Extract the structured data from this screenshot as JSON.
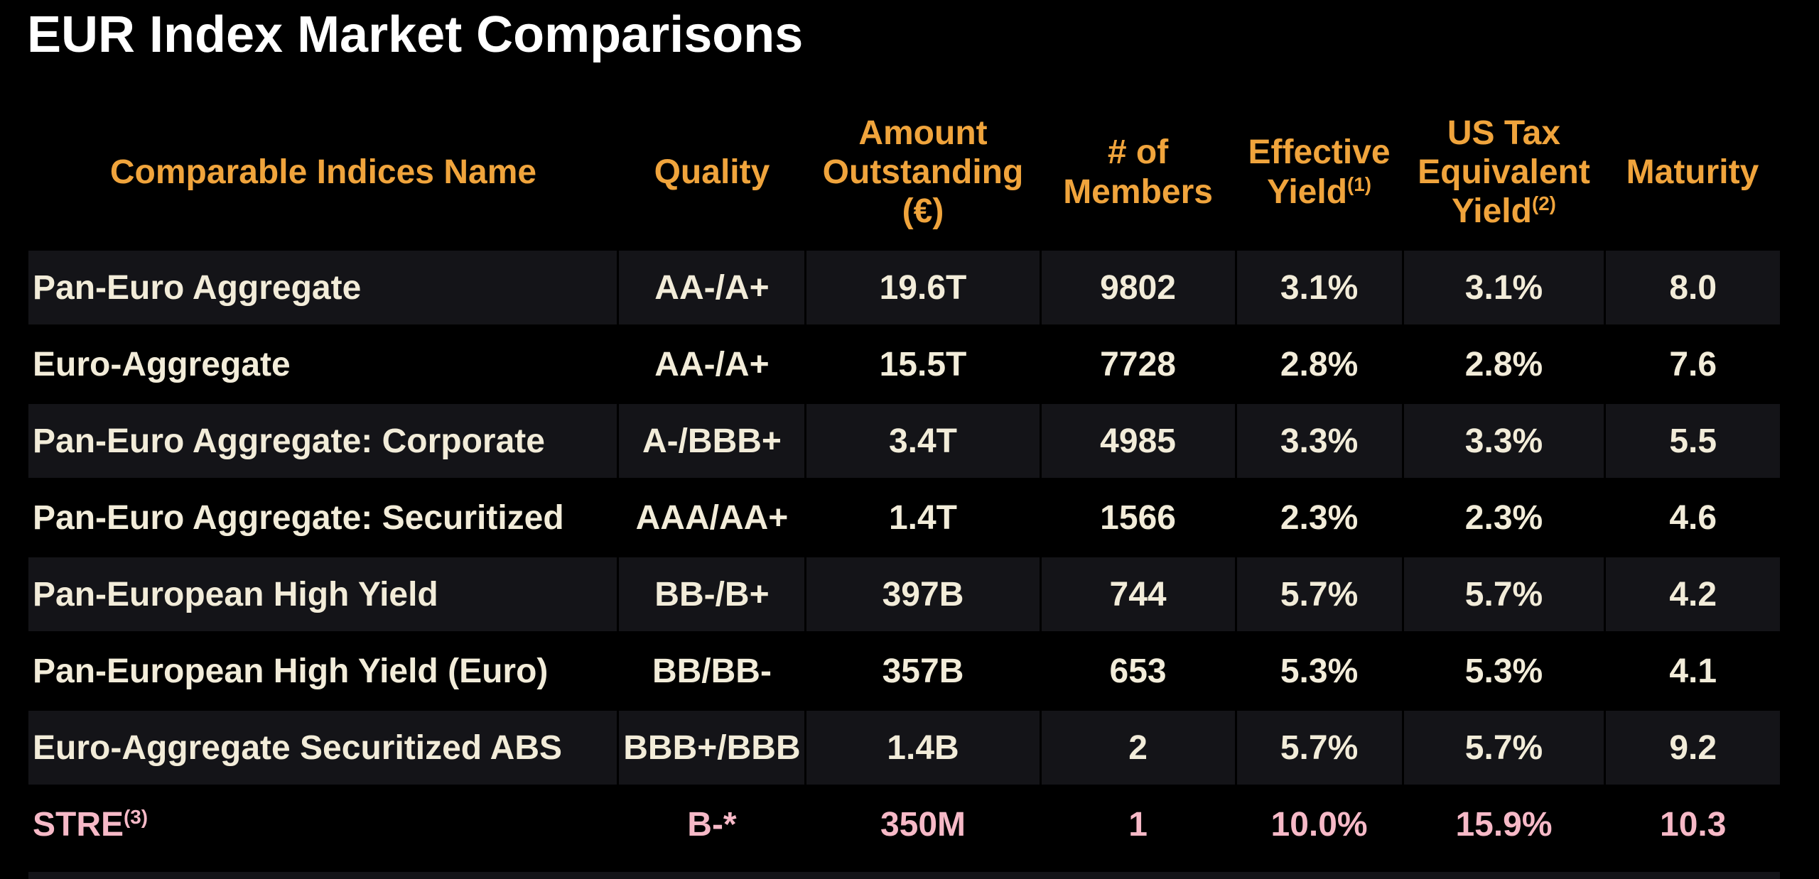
{
  "title": "EUR Index Market Comparisons",
  "colors": {
    "background": "#000000",
    "title_text": "#FFFFFF",
    "header_text": "#F0A43C",
    "body_text": "#F2ECD9",
    "highlight_text": "#F6B9C7",
    "row_stripe": "#141418",
    "header_rule": "#96814F"
  },
  "table": {
    "columns": [
      {
        "id": "name",
        "label": "Comparable Indices Name",
        "sup": "",
        "align": "left",
        "width_pct": 33.67
      },
      {
        "id": "quality",
        "label": "Quality",
        "sup": "",
        "align": "center",
        "width_pct": 10.71
      },
      {
        "id": "amount",
        "label": "Amount\nOutstanding\n(€)",
        "sup": "",
        "align": "center",
        "width_pct": 13.39
      },
      {
        "id": "members",
        "label": "# of\nMembers",
        "sup": "",
        "align": "center",
        "width_pct": 11.16
      },
      {
        "id": "effective_yield",
        "label": "Effective\nYield",
        "sup": "(1)",
        "align": "center",
        "width_pct": 9.53
      },
      {
        "id": "us_tax_equivalent_yield",
        "label": "US Tax\nEquivalent\nYield",
        "sup": "(2)",
        "align": "center",
        "width_pct": 11.56
      },
      {
        "id": "maturity",
        "label": "Maturity",
        "sup": "",
        "align": "center",
        "width_pct": 9.98
      }
    ],
    "rows": [
      {
        "name": "Pan-Euro Aggregate",
        "name_sup": "",
        "quality": "AA-/A+",
        "amount": "19.6T",
        "members": "9802",
        "effective_yield": "3.1%",
        "us_tax_equivalent_yield": "3.1%",
        "maturity": "8.0",
        "striped": true,
        "highlight": false
      },
      {
        "name": "Euro-Aggregate",
        "name_sup": "",
        "quality": "AA-/A+",
        "amount": "15.5T",
        "members": "7728",
        "effective_yield": "2.8%",
        "us_tax_equivalent_yield": "2.8%",
        "maturity": "7.6",
        "striped": false,
        "highlight": false
      },
      {
        "name": "Pan-Euro Aggregate: Corporate",
        "name_sup": "",
        "quality": "A-/BBB+",
        "amount": "3.4T",
        "members": "4985",
        "effective_yield": "3.3%",
        "us_tax_equivalent_yield": "3.3%",
        "maturity": "5.5",
        "striped": true,
        "highlight": false
      },
      {
        "name": "Pan-Euro Aggregate: Securitized",
        "name_sup": "",
        "quality": "AAA/AA+",
        "amount": "1.4T",
        "members": "1566",
        "effective_yield": "2.3%",
        "us_tax_equivalent_yield": "2.3%",
        "maturity": "4.6",
        "striped": false,
        "highlight": false
      },
      {
        "name": "Pan-European High Yield",
        "name_sup": "",
        "quality": "BB-/B+",
        "amount": "397B",
        "members": "744",
        "effective_yield": "5.7%",
        "us_tax_equivalent_yield": "5.7%",
        "maturity": "4.2",
        "striped": true,
        "highlight": false
      },
      {
        "name": "Pan-European High Yield (Euro)",
        "name_sup": "",
        "quality": "BB/BB-",
        "amount": "357B",
        "members": "653",
        "effective_yield": "5.3%",
        "us_tax_equivalent_yield": "5.3%",
        "maturity": "4.1",
        "striped": false,
        "highlight": false
      },
      {
        "name": "Euro-Aggregate Securitized ABS",
        "name_sup": "",
        "quality": "BBB+/BBB",
        "amount": "1.4B",
        "members": "2",
        "effective_yield": "5.7%",
        "us_tax_equivalent_yield": "5.7%",
        "maturity": "9.2",
        "striped": true,
        "highlight": false
      },
      {
        "name": "STRE",
        "name_sup": "(3)",
        "quality": "B-*",
        "amount": "350M",
        "members": "1",
        "effective_yield": "10.0%",
        "us_tax_equivalent_yield": "15.9%",
        "maturity": "10.3",
        "striped": false,
        "highlight": true
      }
    ]
  }
}
